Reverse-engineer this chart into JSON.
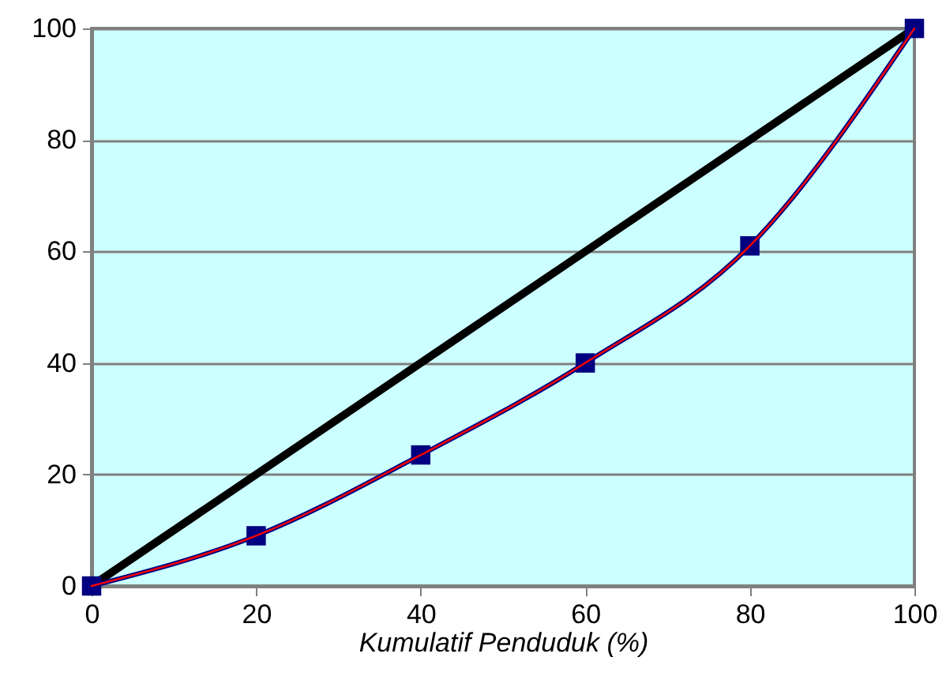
{
  "chart_data": {
    "type": "line",
    "xlabel": "Kumulatif Penduduk (%)",
    "xlim": [
      0,
      100
    ],
    "xticks": [
      0,
      20,
      40,
      60,
      80,
      100
    ],
    "ylim": [
      0,
      100
    ],
    "yticks": [
      0,
      20,
      40,
      60,
      80,
      100
    ],
    "grid": "y",
    "line_style": "solid",
    "series": [
      {
        "color": "#000000",
        "x": [
          0,
          100
        ],
        "values": [
          0,
          100
        ],
        "marker": "none"
      },
      {
        "color": "#000080",
        "x": [
          0,
          20,
          40,
          60,
          80,
          100
        ],
        "values": [
          0,
          9,
          23.5,
          40,
          61,
          100
        ],
        "marker": "square"
      },
      {
        "color": "#ff0000",
        "x": [
          0,
          20,
          40,
          60,
          80,
          100
        ],
        "values": [
          0,
          9,
          23.5,
          40,
          61,
          100
        ],
        "marker": "none"
      }
    ]
  }
}
